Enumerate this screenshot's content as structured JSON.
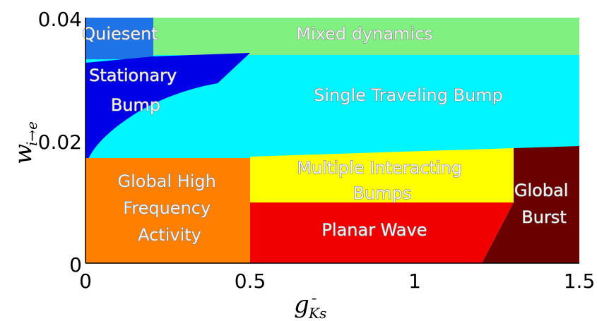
{
  "diagram": {
    "type": "phase-diagram",
    "x_axis": {
      "label_main": "g",
      "label_sub": "Ks",
      "bar": "¯",
      "ticks": [
        "0",
        "0.5",
        "1",
        "1.5"
      ],
      "range": [
        0,
        1.5
      ]
    },
    "y_axis": {
      "label_main": "w",
      "label_sub": "i→e",
      "ticks": [
        "0",
        "0.02",
        "0.04"
      ],
      "range": [
        0,
        0.04
      ]
    },
    "regions": [
      {
        "id": "quiesent",
        "lines": [
          "Quiesent"
        ],
        "color": "#1e73e6"
      },
      {
        "id": "mixed-dynamics",
        "lines": [
          "Mixed dynamics"
        ],
        "color": "#80f080"
      },
      {
        "id": "stationary-bump",
        "lines": [
          "Stationary",
          "Bump"
        ],
        "color": "#0000e6"
      },
      {
        "id": "single-traveling-bump",
        "lines": [
          "Single Traveling Bump"
        ],
        "color": "#00f5ff"
      },
      {
        "id": "global-high-frequency",
        "lines": [
          "Global High",
          "Frequency",
          "Activity"
        ],
        "color": "#ff8000"
      },
      {
        "id": "multiple-interacting-bumps",
        "lines": [
          "Multiple Interacting",
          "Bumps"
        ],
        "color": "#ffff00"
      },
      {
        "id": "planar-wave",
        "lines": [
          "Planar Wave"
        ],
        "color": "#f00000"
      },
      {
        "id": "global-burst",
        "lines": [
          "Global",
          "Burst"
        ],
        "color": "#6b0000"
      }
    ]
  }
}
